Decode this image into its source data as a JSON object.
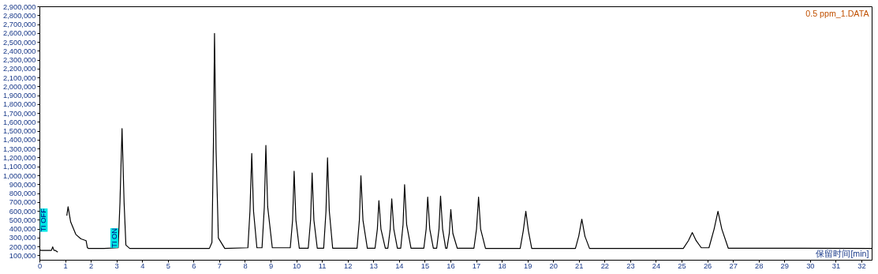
{
  "chart_data": {
    "type": "line",
    "title": "0.5 ppm_1.DATA",
    "xlabel": "保留时间[min]",
    "x": [
      0,
      0.05,
      0.45,
      0.5,
      0.55,
      0.6,
      0.65,
      0.7,
      0.71,
      1.04,
      1.05,
      1.1,
      1.2,
      1.4,
      1.6,
      1.8,
      1.85,
      1.9,
      2.5,
      3.05,
      3.12,
      3.2,
      3.28,
      3.35,
      3.5,
      6.6,
      6.7,
      6.76,
      6.8,
      6.86,
      6.95,
      7.2,
      8.1,
      8.18,
      8.25,
      8.32,
      8.45,
      8.65,
      8.74,
      8.8,
      8.87,
      9.05,
      9.75,
      9.84,
      9.9,
      9.97,
      10.1,
      10.45,
      10.54,
      10.6,
      10.67,
      10.8,
      11.05,
      11.14,
      11.2,
      11.27,
      11.4,
      12.35,
      12.44,
      12.5,
      12.58,
      12.75,
      13.05,
      13.14,
      13.2,
      13.28,
      13.45,
      13.55,
      13.64,
      13.7,
      13.78,
      13.92,
      14.05,
      14.14,
      14.2,
      14.28,
      14.45,
      14.95,
      15.04,
      15.1,
      15.18,
      15.32,
      15.45,
      15.54,
      15.6,
      15.68,
      15.8,
      15.85,
      15.94,
      16.0,
      16.08,
      16.25,
      16.9,
      17.0,
      17.08,
      17.16,
      17.35,
      18.7,
      18.82,
      18.92,
      19.02,
      19.15,
      20.85,
      20.98,
      21.1,
      21.22,
      21.4,
      25.05,
      25.25,
      25.4,
      25.55,
      25.75,
      26.05,
      26.25,
      26.4,
      26.55,
      26.8,
      32.4
    ],
    "series": [
      {
        "color": "#000000",
        "values": [
          165000,
          160000,
          160000,
          200000,
          160000,
          160000,
          150000,
          140000,
          null,
          null,
          550000,
          650000,
          480000,
          340000,
          290000,
          270000,
          190000,
          182000,
          182000,
          190000,
          700000,
          1530000,
          700000,
          220000,
          182000,
          182000,
          250000,
          1400000,
          2600000,
          1300000,
          300000,
          182000,
          190000,
          600000,
          1250000,
          600000,
          190000,
          190000,
          650000,
          1340000,
          650000,
          190000,
          190000,
          500000,
          1050000,
          500000,
          185000,
          185000,
          500000,
          1030000,
          500000,
          185000,
          185000,
          600000,
          1200000,
          600000,
          185000,
          185000,
          500000,
          1000000,
          500000,
          185000,
          185000,
          400000,
          720000,
          400000,
          185000,
          185000,
          400000,
          740000,
          400000,
          185000,
          185000,
          450000,
          900000,
          450000,
          185000,
          185000,
          400000,
          760000,
          400000,
          185000,
          185000,
          400000,
          770000,
          400000,
          185000,
          185000,
          350000,
          620000,
          350000,
          185000,
          185000,
          400000,
          760000,
          400000,
          182000,
          182000,
          380000,
          600000,
          380000,
          182000,
          182000,
          320000,
          510000,
          320000,
          182000,
          182000,
          270000,
          360000,
          270000,
          190000,
          190000,
          400000,
          600000,
          400000,
          185000,
          182000
        ]
      }
    ],
    "xlim": [
      0,
      32.4
    ],
    "ylim": [
      50000,
      2900000
    ],
    "xticks": [
      0,
      1,
      2,
      3,
      4,
      5,
      6,
      7,
      8,
      9,
      10,
      11,
      12,
      13,
      14,
      15,
      16,
      17,
      18,
      19,
      20,
      21,
      22,
      23,
      24,
      25,
      26,
      27,
      28,
      29,
      30,
      31,
      32
    ],
    "yticks": [
      {
        "value": 100000,
        "label": "100,000"
      },
      {
        "value": 200000,
        "label": "200,000"
      },
      {
        "value": 300000,
        "label": "300,000"
      },
      {
        "value": 400000,
        "label": "400,000"
      },
      {
        "value": 500000,
        "label": "500,000"
      },
      {
        "value": 600000,
        "label": "600,000"
      },
      {
        "value": 700000,
        "label": "700,000"
      },
      {
        "value": 800000,
        "label": "800,000"
      },
      {
        "value": 900000,
        "label": "900,000"
      },
      {
        "value": 1000000,
        "label": "1,000,000"
      },
      {
        "value": 1100000,
        "label": "1,100,000"
      },
      {
        "value": 1200000,
        "label": "1,200,000"
      },
      {
        "value": 1300000,
        "label": "1,300,000"
      },
      {
        "value": 1400000,
        "label": "1,400,000"
      },
      {
        "value": 1500000,
        "label": "1,500,000"
      },
      {
        "value": 1600000,
        "label": "1,600,000"
      },
      {
        "value": 1700000,
        "label": "1,700,000"
      },
      {
        "value": 1800000,
        "label": "1,800,000"
      },
      {
        "value": 1900000,
        "label": "1,900,000"
      },
      {
        "value": 2000000,
        "label": "2,000,000"
      },
      {
        "value": 2100000,
        "label": "2,100,000"
      },
      {
        "value": 2200000,
        "label": "2,200,000"
      },
      {
        "value": 2300000,
        "label": "2,300,000"
      },
      {
        "value": 2400000,
        "label": "2,400,000"
      },
      {
        "value": 2500000,
        "label": "2,500,000"
      },
      {
        "value": 2600000,
        "label": "2,600,000"
      },
      {
        "value": 2700000,
        "label": "2,700,000"
      },
      {
        "value": 2800000,
        "label": "2,800,000"
      },
      {
        "value": 2900000,
        "label": "2,900,000"
      }
    ],
    "annotations": [
      {
        "text": "TI OFF",
        "x": 0.15,
        "y": 500000
      },
      {
        "text": "TI ON",
        "x": 2.9,
        "y": 300000
      }
    ],
    "grid": false,
    "marker": "none",
    "line_style": "solid"
  }
}
